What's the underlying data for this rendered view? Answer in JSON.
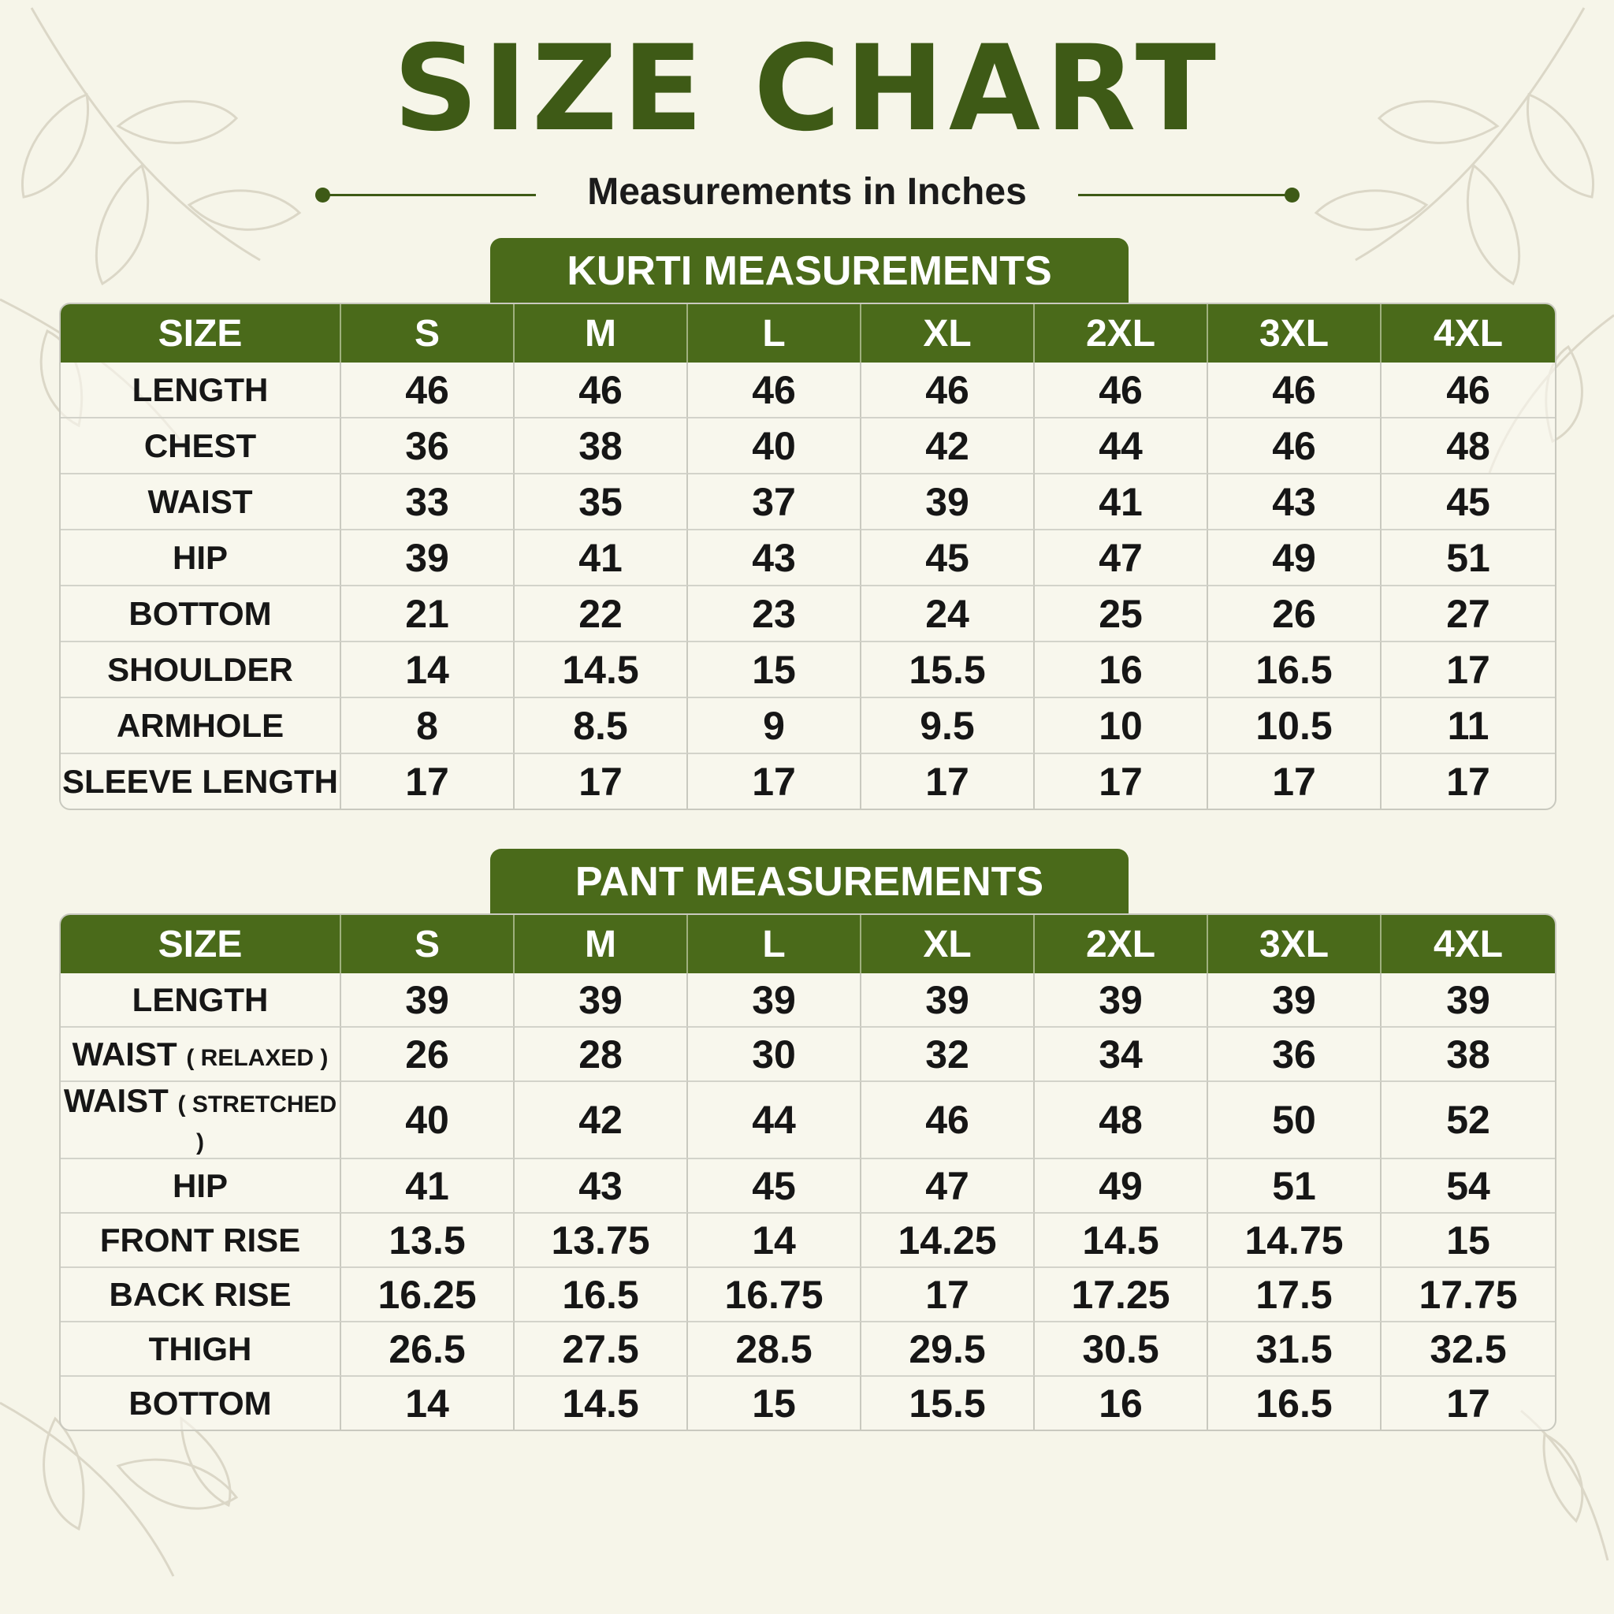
{
  "title": "SIZE CHART",
  "subtitle": "Measurements in Inches",
  "colors": {
    "brand_green": "#4a6a1a",
    "background": "#f6f5e9"
  },
  "sizes": [
    "S",
    "M",
    "L",
    "XL",
    "2XL",
    "3XL",
    "4XL"
  ],
  "kurti": {
    "heading": "KURTI MEASUREMENTS",
    "size_label": "SIZE",
    "rows": [
      {
        "label": "LENGTH",
        "note": "",
        "values": [
          "46",
          "46",
          "46",
          "46",
          "46",
          "46",
          "46"
        ]
      },
      {
        "label": "CHEST",
        "note": "",
        "values": [
          "36",
          "38",
          "40",
          "42",
          "44",
          "46",
          "48"
        ]
      },
      {
        "label": "WAIST",
        "note": "",
        "values": [
          "33",
          "35",
          "37",
          "39",
          "41",
          "43",
          "45"
        ]
      },
      {
        "label": "HIP",
        "note": "",
        "values": [
          "39",
          "41",
          "43",
          "45",
          "47",
          "49",
          "51"
        ]
      },
      {
        "label": "BOTTOM",
        "note": "",
        "values": [
          "21",
          "22",
          "23",
          "24",
          "25",
          "26",
          "27"
        ]
      },
      {
        "label": "SHOULDER",
        "note": "",
        "values": [
          "14",
          "14.5",
          "15",
          "15.5",
          "16",
          "16.5",
          "17"
        ]
      },
      {
        "label": "ARMHOLE",
        "note": "",
        "values": [
          "8",
          "8.5",
          "9",
          "9.5",
          "10",
          "10.5",
          "11"
        ]
      },
      {
        "label": "SLEEVE LENGTH",
        "note": "",
        "values": [
          "17",
          "17",
          "17",
          "17",
          "17",
          "17",
          "17"
        ]
      }
    ]
  },
  "pant": {
    "heading": "PANT MEASUREMENTS",
    "size_label": "SIZE",
    "rows": [
      {
        "label": "LENGTH",
        "note": "",
        "values": [
          "39",
          "39",
          "39",
          "39",
          "39",
          "39",
          "39"
        ]
      },
      {
        "label": "WAIST",
        "note": "( RELAXED )",
        "values": [
          "26",
          "28",
          "30",
          "32",
          "34",
          "36",
          "38"
        ]
      },
      {
        "label": "WAIST",
        "note": "( STRETCHED )",
        "values": [
          "40",
          "42",
          "44",
          "46",
          "48",
          "50",
          "52"
        ]
      },
      {
        "label": "HIP",
        "note": "",
        "values": [
          "41",
          "43",
          "45",
          "47",
          "49",
          "51",
          "54"
        ]
      },
      {
        "label": "FRONT RISE",
        "note": "",
        "values": [
          "13.5",
          "13.75",
          "14",
          "14.25",
          "14.5",
          "14.75",
          "15"
        ]
      },
      {
        "label": "BACK RISE",
        "note": "",
        "values": [
          "16.25",
          "16.5",
          "16.75",
          "17",
          "17.25",
          "17.5",
          "17.75"
        ]
      },
      {
        "label": "THIGH",
        "note": "",
        "values": [
          "26.5",
          "27.5",
          "28.5",
          "29.5",
          "30.5",
          "31.5",
          "32.5"
        ]
      },
      {
        "label": "BOTTOM",
        "note": "",
        "values": [
          "14",
          "14.5",
          "15",
          "15.5",
          "16",
          "16.5",
          "17"
        ]
      }
    ]
  }
}
